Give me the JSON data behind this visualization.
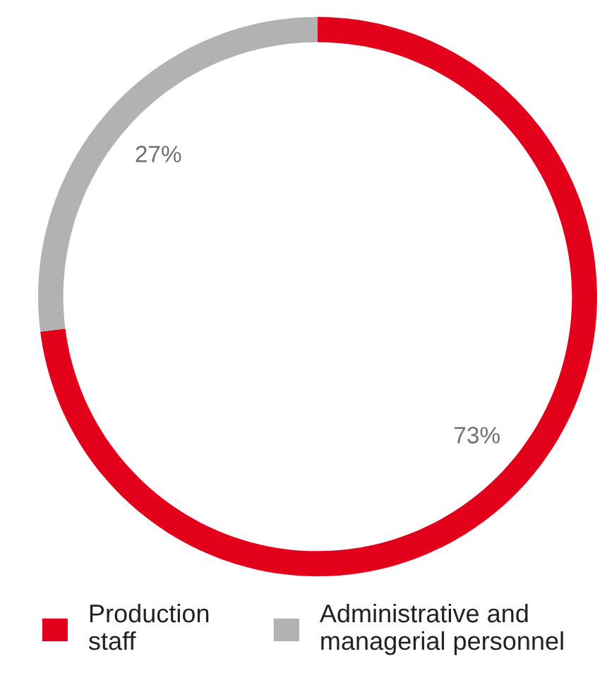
{
  "chart_data": {
    "type": "donut",
    "categories": [
      "Production staff",
      "Administrative and managerial personnel"
    ],
    "values": [
      73,
      27
    ],
    "colors": [
      "#e2001a",
      "#b2b2b2"
    ],
    "value_labels": [
      "73%",
      "27%"
    ],
    "legend": "bottom"
  }
}
